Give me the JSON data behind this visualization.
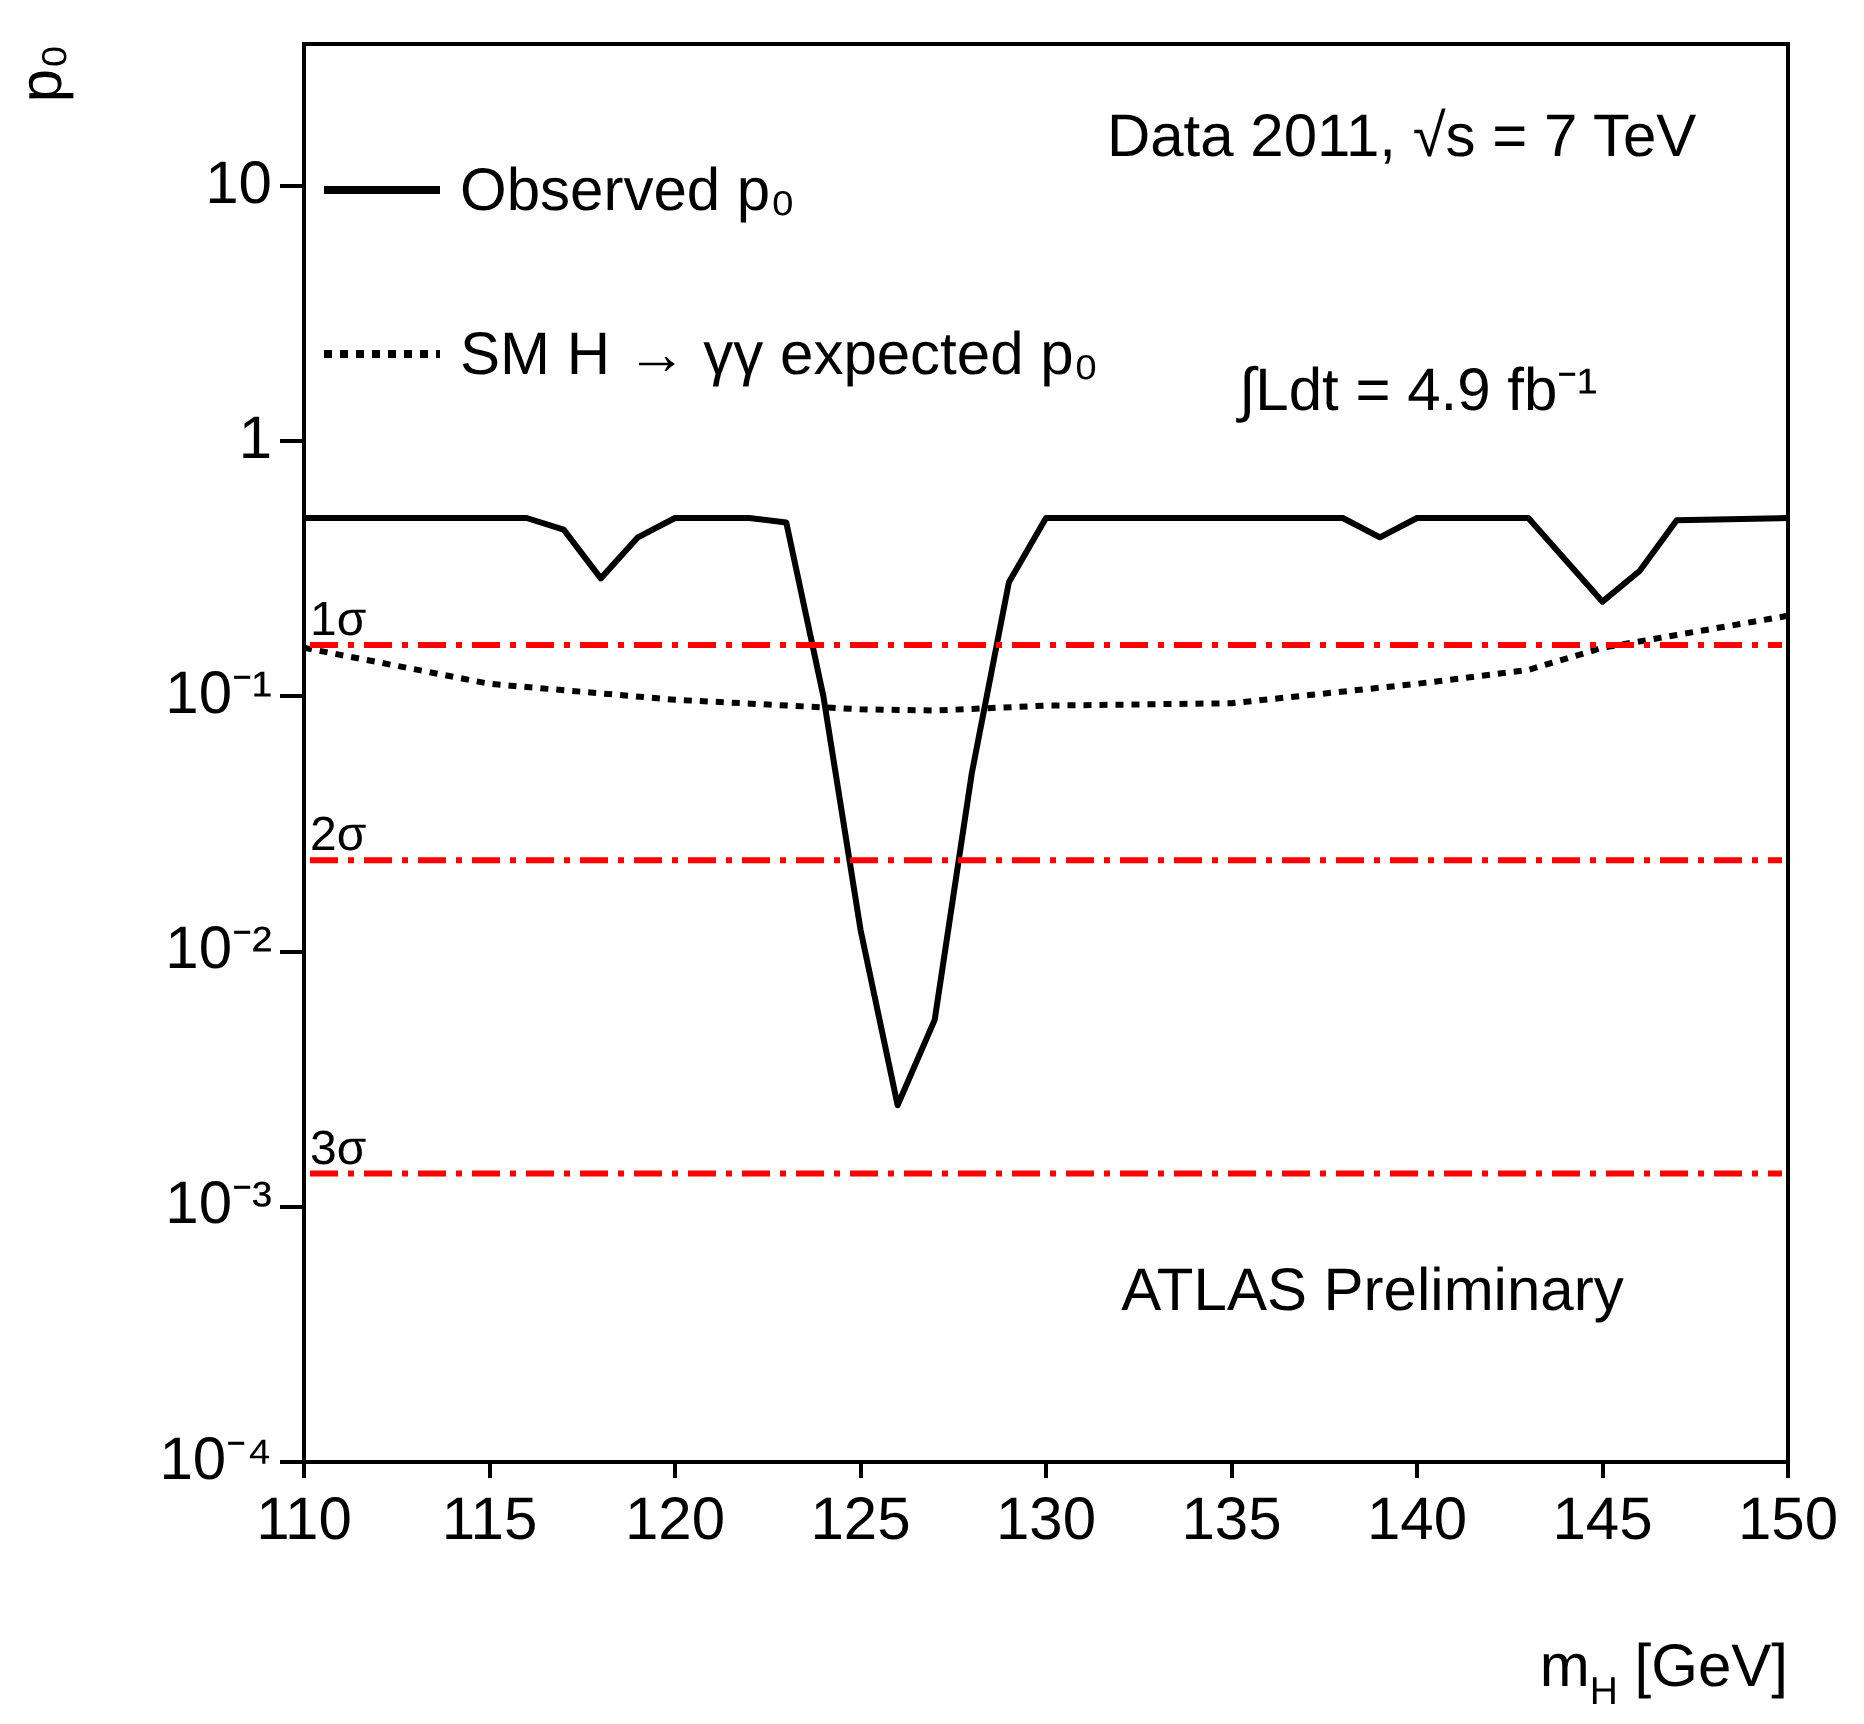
{
  "chart_data": {
    "type": "line",
    "xlabel": "m$_{H}$ [GeV]",
    "ylabel": "p₀",
    "log": "y",
    "grid": false,
    "legend": "top left",
    "marker": "none",
    "xlim": [
      110,
      150
    ],
    "xticks": [
      110,
      115,
      120,
      125,
      130,
      135,
      140,
      145,
      150
    ],
    "ylim": [
      0.0001,
      36
    ],
    "yticks": [
      {
        "value": 0.0001,
        "label": "10⁻⁴"
      },
      {
        "value": 0.001,
        "label": "10⁻³"
      },
      {
        "value": 0.01,
        "label": "10⁻²"
      },
      {
        "value": 0.1,
        "label": "10⁻¹"
      },
      {
        "value": 1,
        "label": "1"
      },
      {
        "value": 10,
        "label": "10"
      }
    ],
    "series": [
      {
        "name": "Observed p₀",
        "color": "#000000",
        "line_style": "solid",
        "x": [
          110,
          116,
          117,
          118,
          119,
          120,
          122,
          123,
          124,
          125,
          126,
          127,
          128,
          129,
          130,
          138,
          139,
          140,
          143,
          145,
          146,
          147,
          150
        ],
        "values": [
          0.5,
          0.5,
          0.45,
          0.29,
          0.42,
          0.5,
          0.5,
          0.48,
          0.1,
          0.0122,
          0.0025,
          0.0054,
          0.05,
          0.28,
          0.5,
          0.5,
          0.42,
          0.5,
          0.5,
          0.235,
          0.31,
          0.49,
          0.5
        ]
      },
      {
        "name": "SM H → γγ expected p₀",
        "color": "#000000",
        "line_style": "dotted",
        "x": [
          110,
          115,
          120,
          125,
          127,
          130,
          135,
          140,
          143,
          145,
          147,
          150
        ],
        "values": [
          0.155,
          0.112,
          0.097,
          0.089,
          0.088,
          0.092,
          0.094,
          0.112,
          0.127,
          0.155,
          0.174,
          0.207
        ]
      }
    ],
    "ref_lines": [
      {
        "axis": "y",
        "value": 0.159,
        "label": "1σ",
        "color": "#ff0000",
        "line_style": "dashed"
      },
      {
        "axis": "y",
        "value": 0.0228,
        "label": "2σ",
        "color": "#ff0000",
        "line_style": "dashed"
      },
      {
        "axis": "y",
        "value": 0.00135,
        "label": "3σ",
        "color": "#ff0000",
        "line_style": "dashed"
      }
    ],
    "annotations": [
      "Data 2011, √s = 7 TeV",
      "∫Ldt = 4.9 fb⁻¹",
      "ATLAS Preliminary"
    ]
  }
}
